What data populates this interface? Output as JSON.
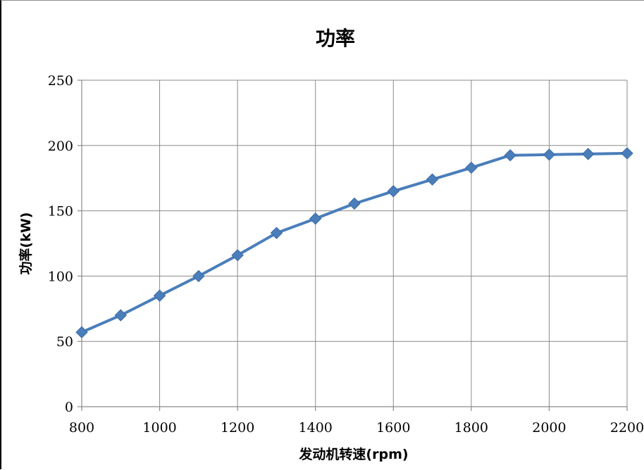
{
  "chart_data": {
    "type": "line",
    "title": "功率",
    "xlabel": "发动机转速(rpm)",
    "ylabel": "功率(kW)",
    "x": [
      800,
      900,
      1000,
      1100,
      1200,
      1300,
      1400,
      1500,
      1600,
      1700,
      1800,
      1900,
      2000,
      2100,
      2200
    ],
    "series": [
      {
        "values": [
          57,
          70,
          85,
          100,
          116,
          133,
          144,
          155.5,
          165,
          174,
          183,
          192.5,
          193,
          193.5,
          194
        ],
        "color": "#4a7ebb",
        "marker": "diamond"
      }
    ],
    "xlim": [
      800,
      2200
    ],
    "ylim": [
      0,
      250
    ],
    "x_ticks": [
      "800",
      "1000",
      "1200",
      "1400",
      "1600",
      "1800",
      "2000",
      "2200"
    ],
    "y_ticks": [
      "0",
      "50",
      "100",
      "150",
      "200",
      "250"
    ],
    "grid": true,
    "legend": "none"
  }
}
